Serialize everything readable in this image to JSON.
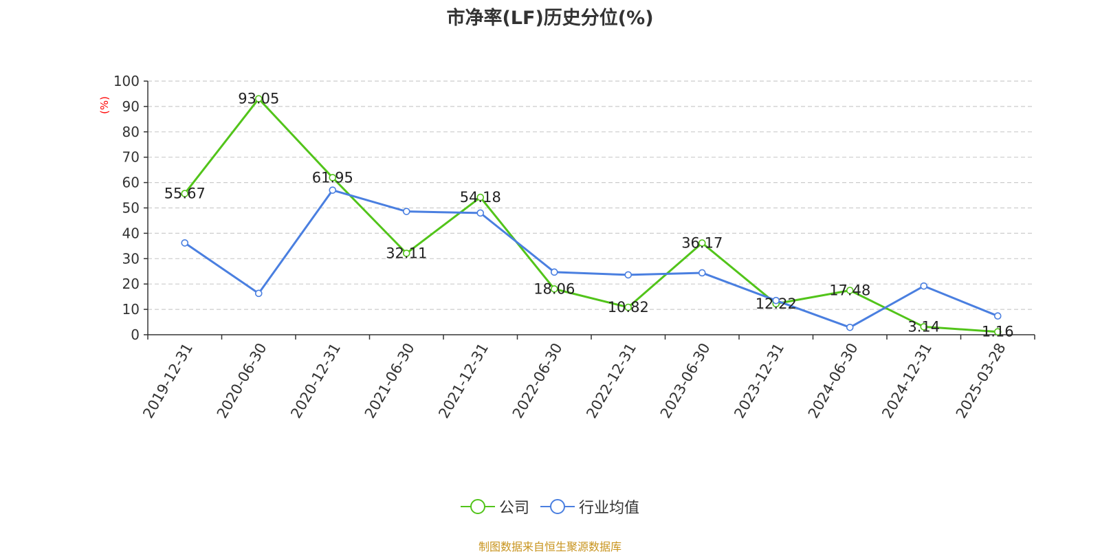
{
  "chart_data": {
    "type": "line",
    "title": "市净率(LF)历史分位(%)",
    "ylabel": "(%)",
    "xlabel": "",
    "ylim": [
      0,
      100
    ],
    "yticks": [
      0,
      10,
      20,
      30,
      40,
      50,
      60,
      70,
      80,
      90,
      100
    ],
    "grid": true,
    "legend_position": "bottom-center",
    "categories": [
      "2019-12-31",
      "2020-06-30",
      "2020-12-31",
      "2021-06-30",
      "2021-12-31",
      "2022-06-30",
      "2022-12-31",
      "2023-06-30",
      "2023-12-31",
      "2024-06-30",
      "2024-12-31",
      "2025-03-28"
    ],
    "series": [
      {
        "name": "公司",
        "color": "#52c41a",
        "values": [
          55.67,
          93.05,
          61.95,
          32.11,
          54.18,
          18.06,
          10.82,
          36.17,
          12.22,
          17.48,
          3.14,
          1.16
        ],
        "labels": [
          "55.67",
          "93.05",
          "61.95",
          "32.11",
          "54.18",
          "18.06",
          "10.82",
          "36.17",
          "12.22",
          "17.48",
          "3.14",
          "1.16"
        ]
      },
      {
        "name": "行业均值",
        "color": "#4a7fe0",
        "values": [
          36.2,
          16.3,
          57.0,
          48.6,
          48.0,
          24.7,
          23.6,
          24.4,
          13.5,
          2.9,
          19.2,
          7.4
        ]
      }
    ]
  },
  "source_note": "制图数据来自恒生聚源数据库"
}
